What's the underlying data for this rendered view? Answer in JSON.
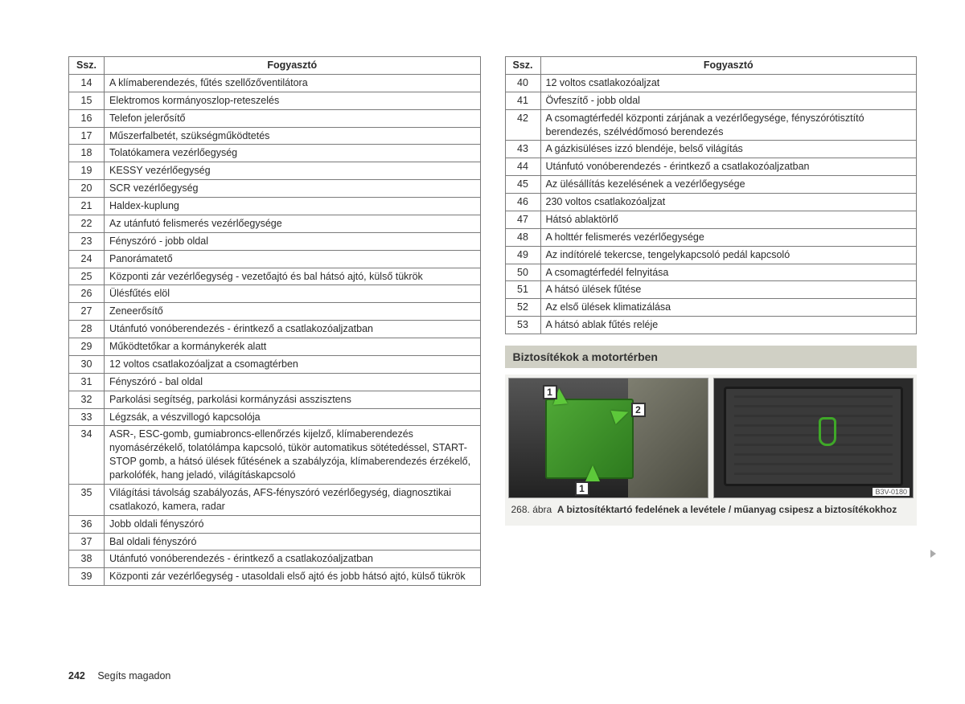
{
  "leftTable": {
    "headers": {
      "num": "Ssz.",
      "desc": "Fogyasztó"
    },
    "rows": [
      {
        "n": "14",
        "d": "A klímaberendezés, fűtés szellőzőventilátora"
      },
      {
        "n": "15",
        "d": "Elektromos kormányoszlop-reteszelés"
      },
      {
        "n": "16",
        "d": "Telefon jelerősítő"
      },
      {
        "n": "17",
        "d": "Műszerfalbetét, szükségműködtetés"
      },
      {
        "n": "18",
        "d": "Tolatókamera vezérlőegység"
      },
      {
        "n": "19",
        "d": "KESSY vezérlőegység"
      },
      {
        "n": "20",
        "d": "SCR vezérlőegység"
      },
      {
        "n": "21",
        "d": "Haldex-kuplung"
      },
      {
        "n": "22",
        "d": "Az utánfutó felismerés vezérlőegysége"
      },
      {
        "n": "23",
        "d": "Fényszóró - jobb oldal"
      },
      {
        "n": "24",
        "d": "Panorámatető"
      },
      {
        "n": "25",
        "d": "Központi zár vezérlőegység - vezetőajtó és bal hátsó ajtó, külső tükrök"
      },
      {
        "n": "26",
        "d": "Ülésfűtés elöl"
      },
      {
        "n": "27",
        "d": "Zeneerősítő"
      },
      {
        "n": "28",
        "d": "Utánfutó vonóberendezés - érintkező a csatlakozóaljzatban"
      },
      {
        "n": "29",
        "d": "Működtetőkar a kormánykerék alatt"
      },
      {
        "n": "30",
        "d": "12 voltos csatlakozóaljzat a csomagtérben"
      },
      {
        "n": "31",
        "d": "Fényszóró - bal oldal"
      },
      {
        "n": "32",
        "d": "Parkolási segítség, parkolási kormányzási asszisztens"
      },
      {
        "n": "33",
        "d": "Légzsák, a vészvillogó kapcsolója"
      },
      {
        "n": "34",
        "d": "ASR-, ESC-gomb, gumiabroncs-ellenőrzés kijelző, klímaberendezés nyomásérzékelő, tolatólámpa kapcsoló, tükör automatikus sötétedéssel, START-STOP gomb, a hátsó ülések fűtésének a szabályzója, klímaberendezés érzékelő, parkolófék, hang jeladó, világításkapcsoló"
      },
      {
        "n": "35",
        "d": "Világítási távolság szabályozás, AFS-fényszóró vezérlőegység, diagnosztikai csatlakozó, kamera, radar"
      },
      {
        "n": "36",
        "d": "Jobb oldali fényszóró"
      },
      {
        "n": "37",
        "d": "Bal oldali fényszóró"
      },
      {
        "n": "38",
        "d": "Utánfutó vonóberendezés - érintkező a csatlakozóaljzatban"
      },
      {
        "n": "39",
        "d": "Központi zár vezérlőegység - utasoldali első ajtó és jobb hátsó ajtó, külső tükrök"
      }
    ]
  },
  "rightTable": {
    "headers": {
      "num": "Ssz.",
      "desc": "Fogyasztó"
    },
    "rows": [
      {
        "n": "40",
        "d": "12 voltos csatlakozóaljzat"
      },
      {
        "n": "41",
        "d": "Övfeszítő - jobb oldal"
      },
      {
        "n": "42",
        "d": "A csomagtérfedél központi zárjának a vezérlőegysége, fényszórótisztító berendezés, szélvédőmosó berendezés"
      },
      {
        "n": "43",
        "d": "A gázkisüléses izzó blendéje, belső világítás"
      },
      {
        "n": "44",
        "d": "Utánfutó vonóberendezés - érintkező a csatlakozóaljzatban"
      },
      {
        "n": "45",
        "d": "Az ülésállítás kezelésének a vezérlőegysége"
      },
      {
        "n": "46",
        "d": "230 voltos csatlakozóaljzat"
      },
      {
        "n": "47",
        "d": "Hátsó ablaktörlő"
      },
      {
        "n": "48",
        "d": "A holttér felismerés vezérlőegysége"
      },
      {
        "n": "49",
        "d": "Az indítórelé tekercse, tengelykapcsoló pedál kapcsoló"
      },
      {
        "n": "50",
        "d": "A csomagtérfedél felnyitása"
      },
      {
        "n": "51",
        "d": "A hátsó ülések fűtése"
      },
      {
        "n": "52",
        "d": "Az első ülések klimatizálása"
      },
      {
        "n": "53",
        "d": "A hátsó ablak fűtés reléje"
      }
    ]
  },
  "sectionHeader": "Biztosítékok a motortérben",
  "figure": {
    "labels": {
      "a": "1",
      "b": "2",
      "c": "1"
    },
    "code": "B3V-0180",
    "captionPrefix": "268. ábra",
    "captionBold": "A biztosítéktartó fedelének a levétele / műanyag csipesz a biztosítékokhoz"
  },
  "footer": {
    "pageNumber": "242",
    "chapter": "Segíts magadon"
  },
  "colors": {
    "border": "#7a7a7a",
    "sectionBg": "#d0d0c5",
    "green": "#4fa836"
  }
}
